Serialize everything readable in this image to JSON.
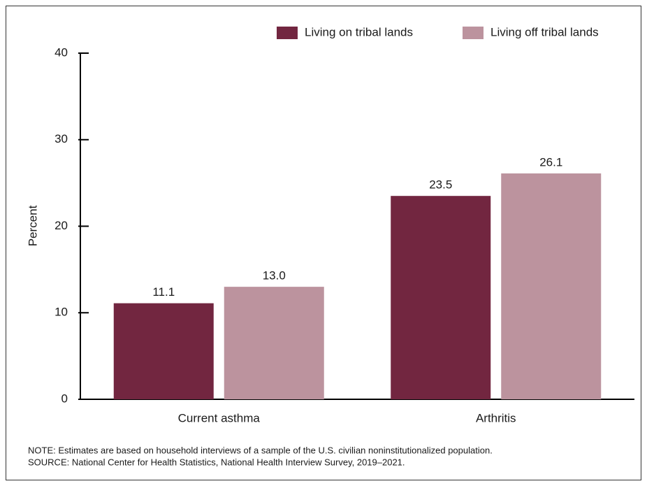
{
  "chart_data": {
    "type": "bar",
    "categories": [
      "Current asthma",
      "Arthritis"
    ],
    "series": [
      {
        "name": "Living on tribal lands",
        "color": "#722640",
        "values": [
          11.1,
          23.5
        ],
        "value_labels": [
          "11.1",
          "23.5"
        ]
      },
      {
        "name": "Living off tribal lands",
        "color": "#bc939e",
        "values": [
          13.0,
          26.1
        ],
        "value_labels": [
          "13.0",
          "26.1"
        ]
      }
    ],
    "y_label": "Percent",
    "ylim": [
      0,
      40
    ],
    "yticks": [
      0,
      10,
      20,
      30,
      40
    ],
    "legend": "top-right",
    "note": "NOTE: Estimates are based on household interviews of a sample of the U.S. civilian noninstitutionalized population.",
    "source": "SOURCE: National Center for Health Statistics, National Health Interview Survey, 2019–2021."
  }
}
